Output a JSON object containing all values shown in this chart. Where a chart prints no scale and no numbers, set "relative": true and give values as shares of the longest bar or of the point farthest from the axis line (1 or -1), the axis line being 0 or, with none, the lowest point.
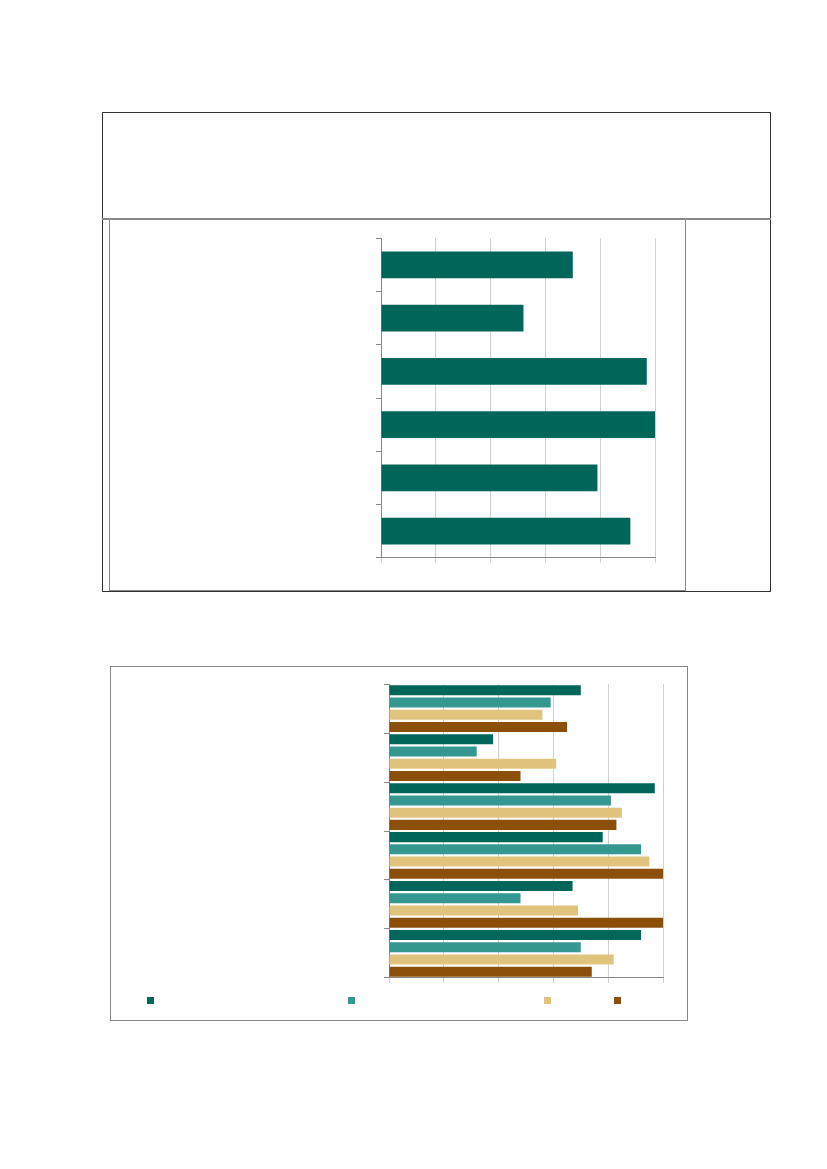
{
  "chart_data": [
    {
      "type": "bar",
      "orientation": "horizontal",
      "relative": true,
      "grid": "x",
      "categories": [
        null,
        null,
        null,
        null,
        null,
        null
      ],
      "series": [
        {
          "color": "#006659",
          "values": [
            0.7,
            0.52,
            0.97,
            1,
            0.79,
            0.91
          ]
        }
      ]
    },
    {
      "type": "bar",
      "orientation": "horizontal",
      "relative": true,
      "grid": "x",
      "categories": [
        null,
        null,
        null,
        null,
        null,
        null
      ],
      "series": [
        {
          "color": "#006659",
          "values": [
            0.7,
            0.38,
            0.97,
            0.78,
            0.67,
            0.92
          ]
        },
        {
          "color": "#359890",
          "values": [
            0.59,
            0.32,
            0.81,
            0.92,
            0.48,
            0.7
          ]
        },
        {
          "color": "#e0c47e",
          "values": [
            0.56,
            0.61,
            0.85,
            0.95,
            0.69,
            0.82
          ]
        },
        {
          "color": "#8b4f0a",
          "values": [
            0.65,
            0.48,
            0.83,
            1,
            1,
            0.74
          ]
        }
      ]
    }
  ]
}
